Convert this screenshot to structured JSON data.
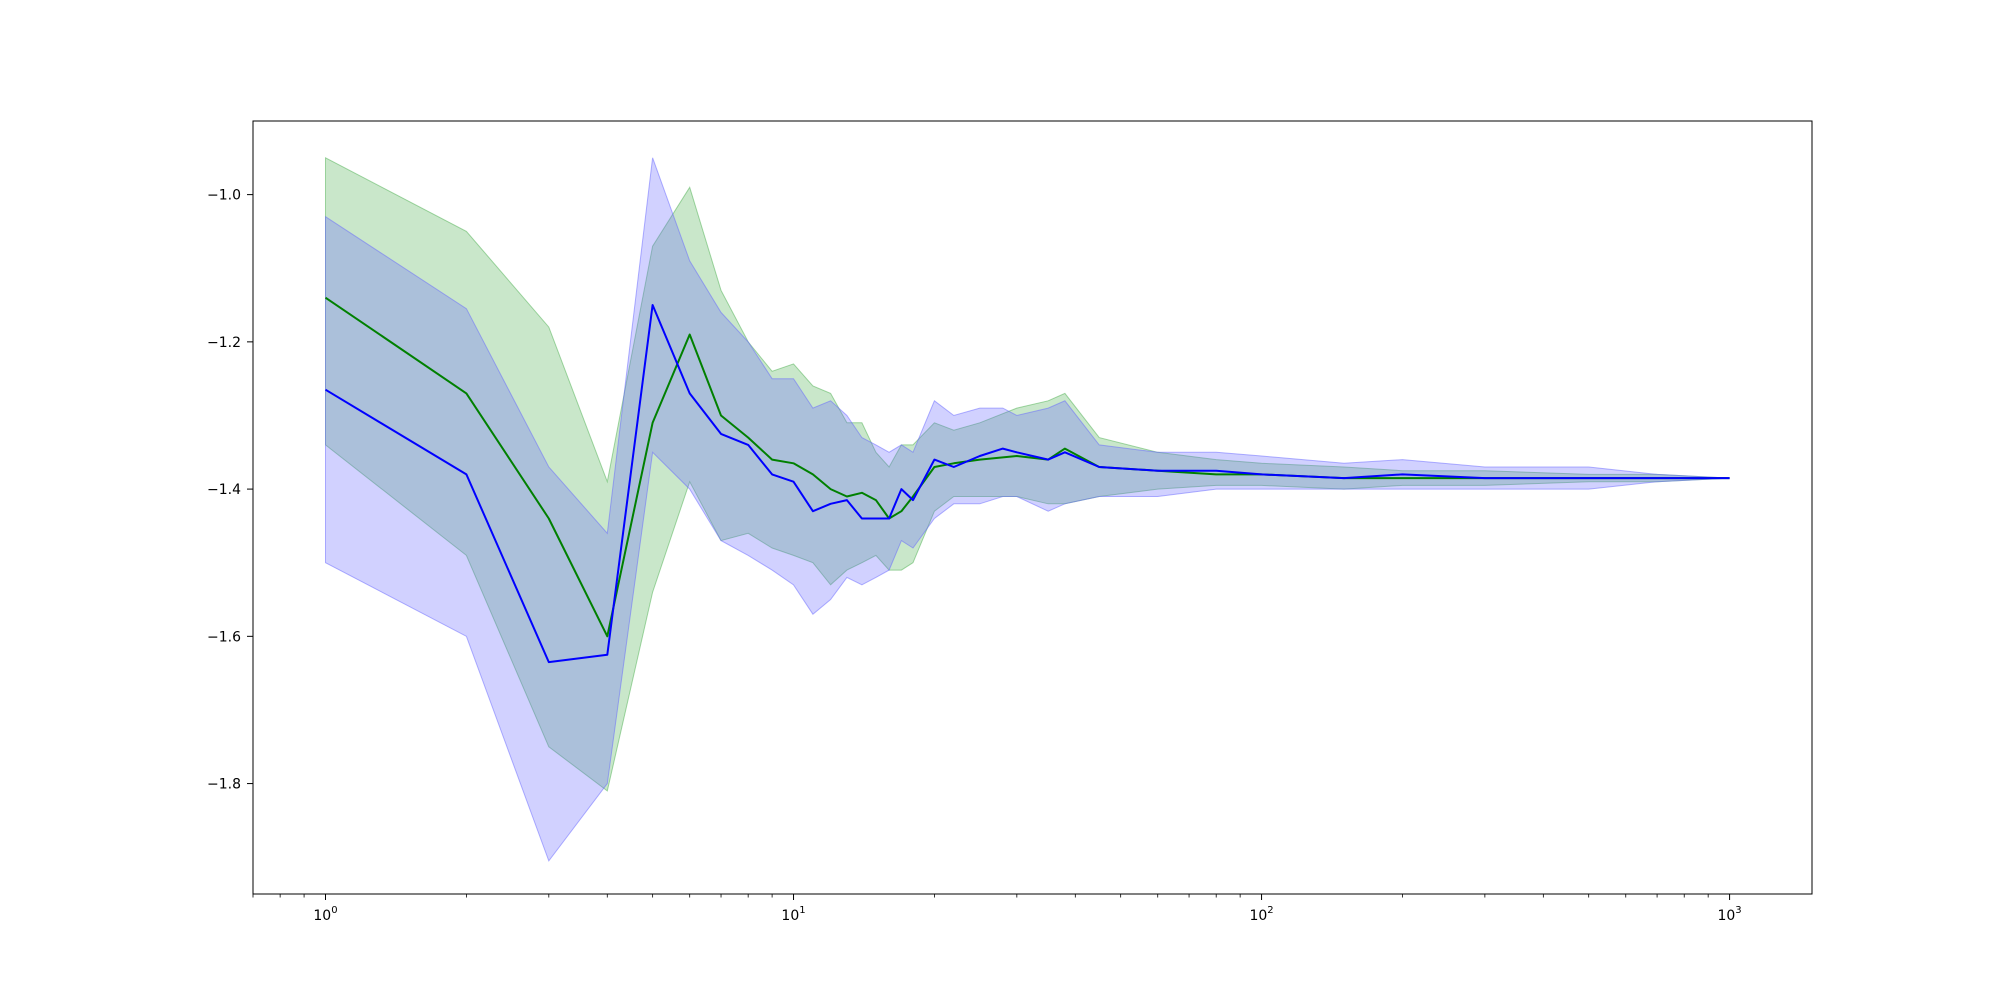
{
  "chart_data": {
    "type": "line",
    "title": "",
    "xlabel": "",
    "ylabel": "",
    "x_scale": "log",
    "xlim": [
      0.7,
      1500
    ],
    "ylim": [
      -1.95,
      -0.9
    ],
    "grid": false,
    "legend": "none",
    "x_ticks": [
      {
        "value": 1,
        "base": "10",
        "exp": "0"
      },
      {
        "value": 10,
        "base": "10",
        "exp": "1"
      },
      {
        "value": 100,
        "base": "10",
        "exp": "2"
      },
      {
        "value": 1000,
        "base": "10",
        "exp": "3"
      }
    ],
    "y_ticks": [
      {
        "value": -1.0,
        "label": "−1.0"
      },
      {
        "value": -1.2,
        "label": "−1.2"
      },
      {
        "value": -1.4,
        "label": "−1.4"
      },
      {
        "value": -1.6,
        "label": "−1.6"
      },
      {
        "value": -1.8,
        "label": "−1.8"
      }
    ],
    "series": [
      {
        "color": "#008000",
        "band_color": "#4caf50",
        "x": [
          1,
          2,
          3,
          4,
          5,
          6,
          7,
          8,
          9,
          10,
          11,
          12,
          13,
          14,
          15,
          16,
          17,
          18,
          20,
          22,
          25,
          30,
          35,
          38,
          45,
          60,
          80,
          100,
          150,
          200,
          300,
          500,
          700,
          1000
        ],
        "mean": [
          -1.14,
          -1.27,
          -1.44,
          -1.6,
          -1.31,
          -1.19,
          -1.3,
          -1.33,
          -1.36,
          -1.365,
          -1.38,
          -1.4,
          -1.41,
          -1.405,
          -1.415,
          -1.44,
          -1.43,
          -1.41,
          -1.37,
          -1.365,
          -1.36,
          -1.355,
          -1.36,
          -1.345,
          -1.37,
          -1.375,
          -1.38,
          -1.38,
          -1.385,
          -1.385,
          -1.385,
          -1.385,
          -1.385,
          -1.385
        ],
        "upper": [
          -0.95,
          -1.05,
          -1.18,
          -1.39,
          -1.07,
          -0.99,
          -1.13,
          -1.2,
          -1.24,
          -1.23,
          -1.26,
          -1.27,
          -1.31,
          -1.31,
          -1.35,
          -1.37,
          -1.34,
          -1.34,
          -1.31,
          -1.32,
          -1.31,
          -1.29,
          -1.28,
          -1.27,
          -1.33,
          -1.35,
          -1.36,
          -1.365,
          -1.37,
          -1.375,
          -1.375,
          -1.38,
          -1.38,
          -1.385
        ],
        "lower": [
          -1.34,
          -1.49,
          -1.75,
          -1.81,
          -1.54,
          -1.39,
          -1.47,
          -1.46,
          -1.48,
          -1.49,
          -1.5,
          -1.53,
          -1.51,
          -1.5,
          -1.49,
          -1.51,
          -1.51,
          -1.5,
          -1.43,
          -1.41,
          -1.41,
          -1.41,
          -1.42,
          -1.42,
          -1.41,
          -1.4,
          -1.395,
          -1.395,
          -1.4,
          -1.395,
          -1.395,
          -1.39,
          -1.39,
          -1.385
        ]
      },
      {
        "color": "#0000ff",
        "band_color": "#6666ff",
        "x": [
          1,
          2,
          3,
          4,
          5,
          6,
          7,
          8,
          9,
          10,
          11,
          12,
          13,
          14,
          15,
          16,
          17,
          18,
          20,
          22,
          25,
          28,
          30,
          35,
          38,
          45,
          60,
          80,
          100,
          150,
          200,
          300,
          500,
          700,
          1000
        ],
        "mean": [
          -1.265,
          -1.38,
          -1.635,
          -1.625,
          -1.15,
          -1.27,
          -1.325,
          -1.34,
          -1.38,
          -1.39,
          -1.43,
          -1.42,
          -1.415,
          -1.44,
          -1.44,
          -1.44,
          -1.4,
          -1.415,
          -1.36,
          -1.37,
          -1.355,
          -1.345,
          -1.35,
          -1.36,
          -1.35,
          -1.37,
          -1.375,
          -1.375,
          -1.38,
          -1.385,
          -1.38,
          -1.385,
          -1.385,
          -1.385,
          -1.385
        ],
        "upper": [
          -1.03,
          -1.155,
          -1.37,
          -1.46,
          -0.95,
          -1.09,
          -1.16,
          -1.2,
          -1.25,
          -1.25,
          -1.29,
          -1.28,
          -1.3,
          -1.33,
          -1.34,
          -1.35,
          -1.34,
          -1.35,
          -1.28,
          -1.3,
          -1.29,
          -1.29,
          -1.3,
          -1.29,
          -1.28,
          -1.34,
          -1.35,
          -1.35,
          -1.355,
          -1.365,
          -1.36,
          -1.37,
          -1.37,
          -1.38,
          -1.385
        ],
        "lower": [
          -1.5,
          -1.6,
          -1.905,
          -1.8,
          -1.35,
          -1.4,
          -1.47,
          -1.49,
          -1.51,
          -1.53,
          -1.57,
          -1.55,
          -1.52,
          -1.53,
          -1.52,
          -1.51,
          -1.47,
          -1.48,
          -1.44,
          -1.42,
          -1.42,
          -1.41,
          -1.41,
          -1.43,
          -1.42,
          -1.41,
          -1.41,
          -1.4,
          -1.4,
          -1.4,
          -1.4,
          -1.4,
          -1.4,
          -1.39,
          -1.385
        ]
      }
    ]
  }
}
